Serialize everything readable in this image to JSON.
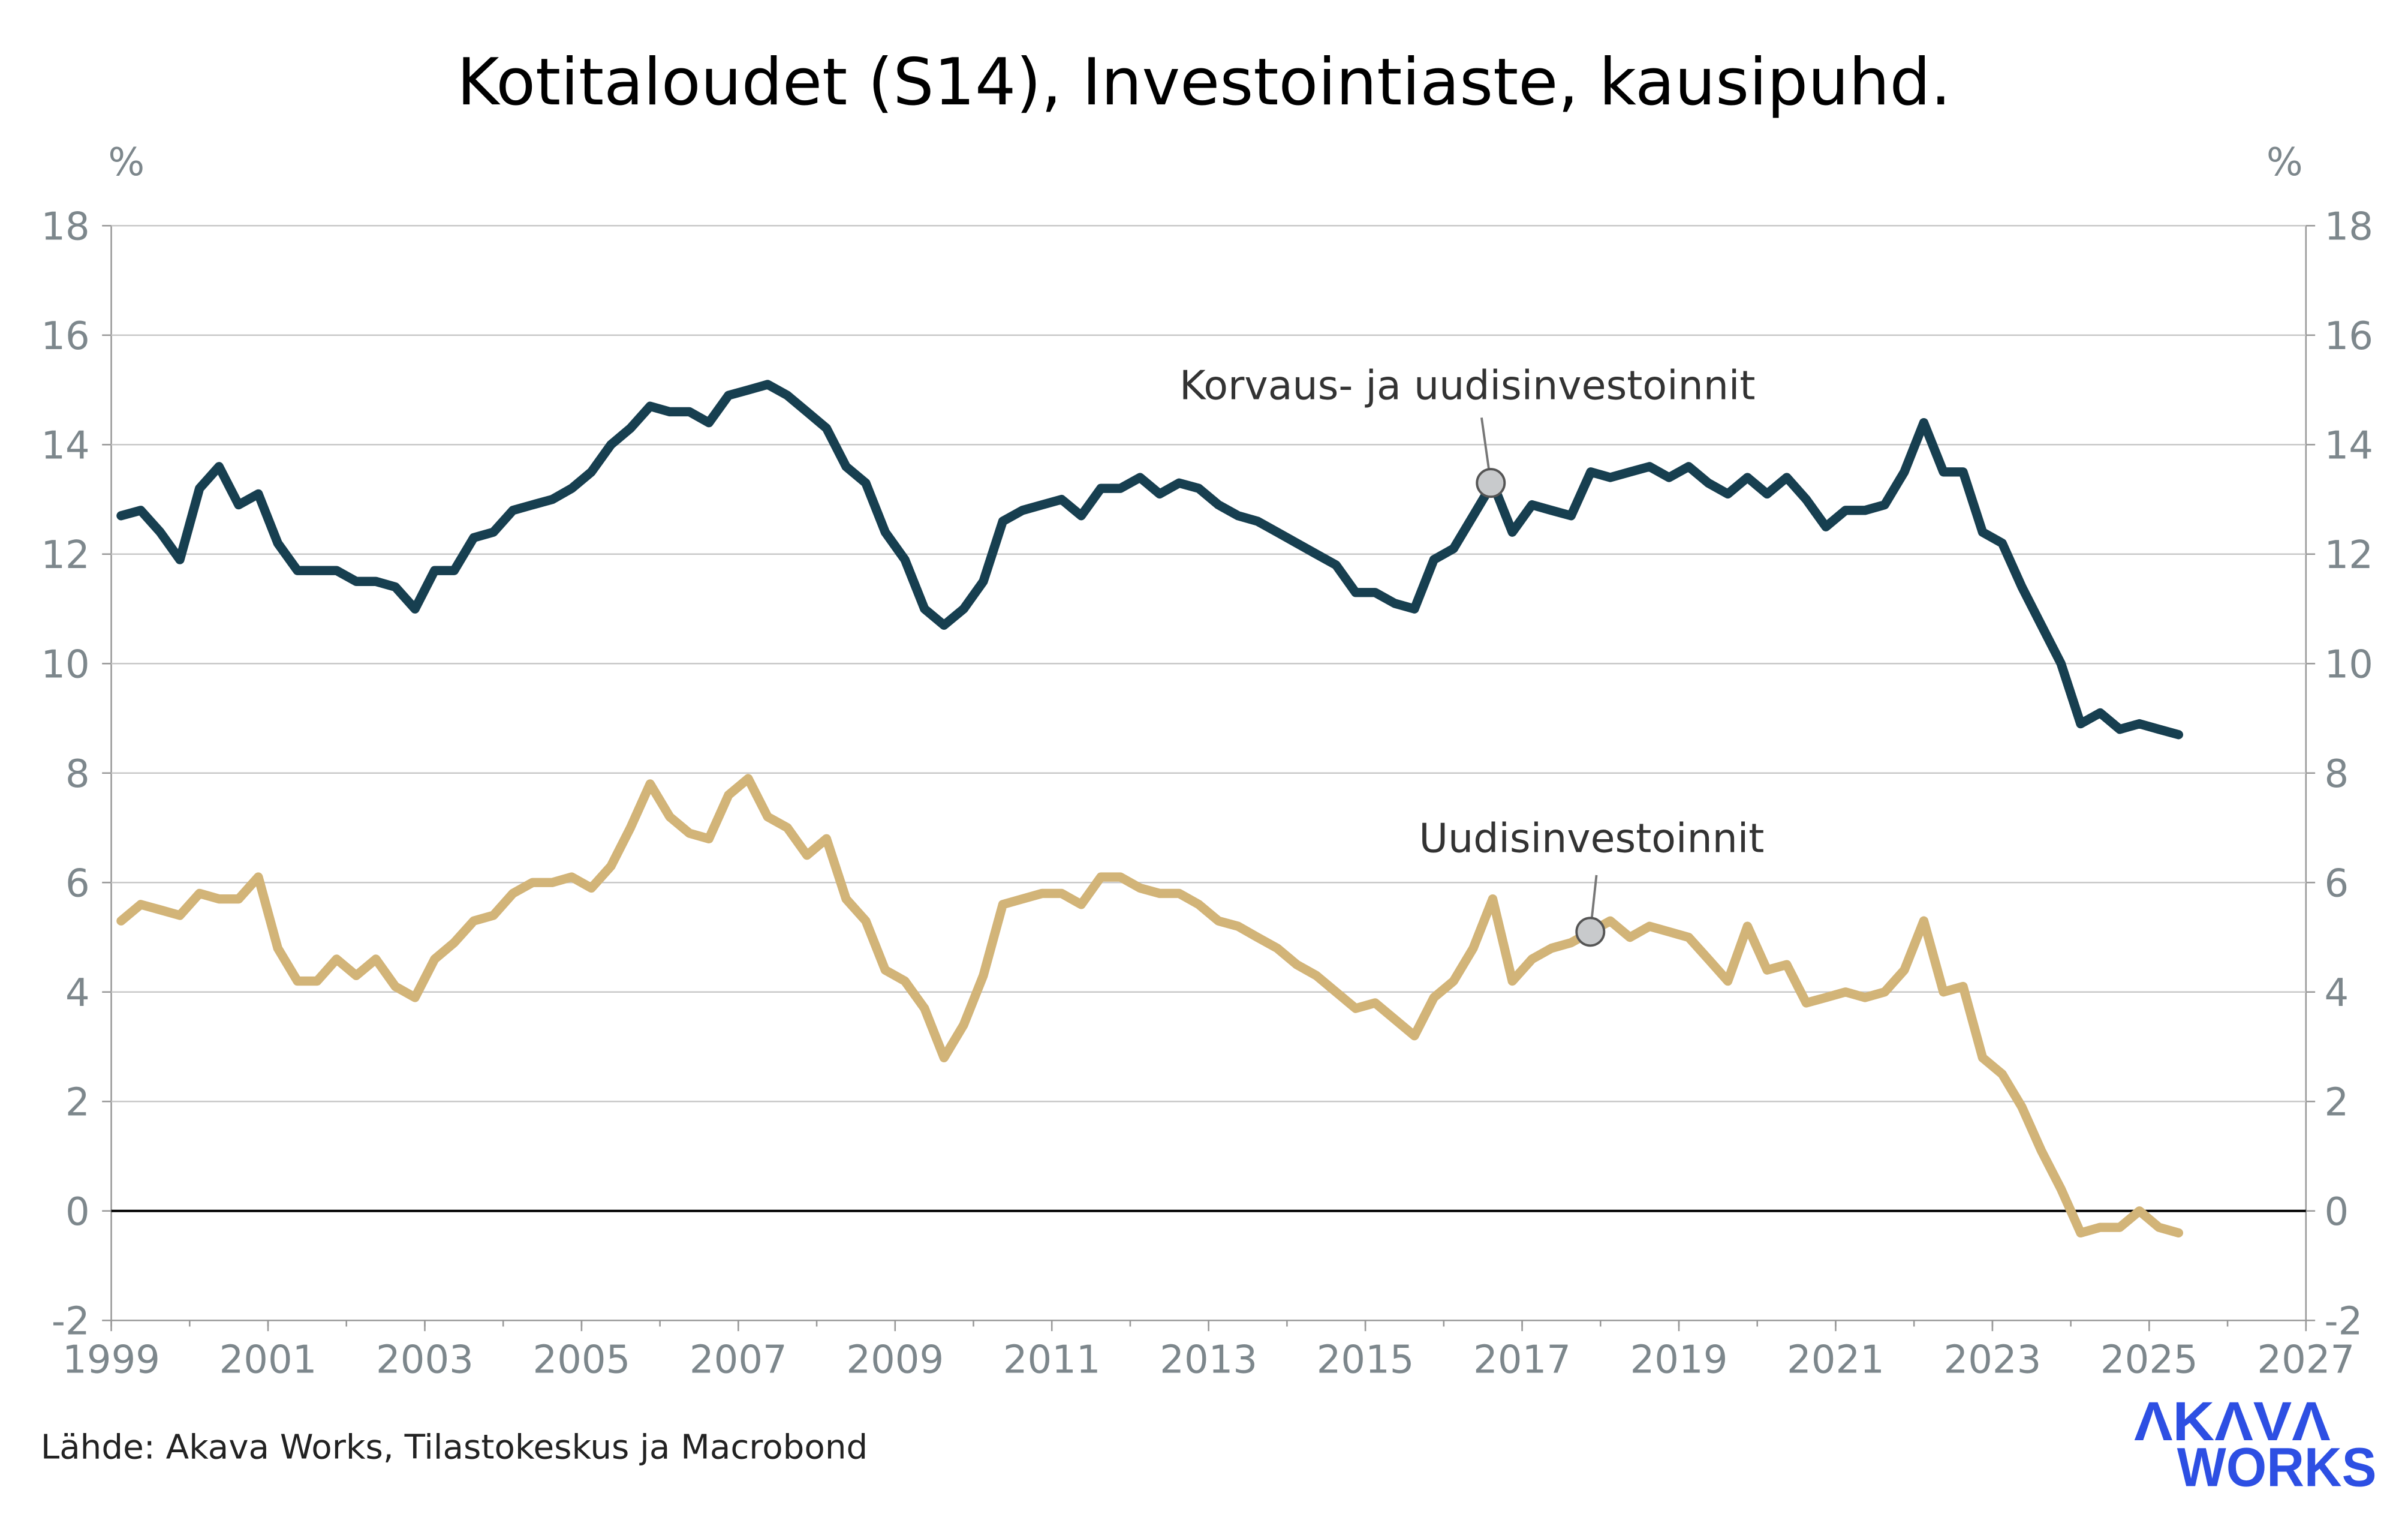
{
  "chart_data": {
    "type": "line",
    "title": "Kotitaloudet (S14), Investointiaste, kausipuhd.",
    "y_unit_left": "%",
    "y_unit_right": "%",
    "ylim": [
      -2,
      18
    ],
    "yticks": [
      -2,
      0,
      2,
      4,
      6,
      8,
      10,
      12,
      14,
      16,
      18
    ],
    "xlim": [
      1999,
      2027
    ],
    "xticks": [
      1999,
      2001,
      2003,
      2005,
      2007,
      2009,
      2011,
      2013,
      2015,
      2017,
      2019,
      2021,
      2023,
      2025,
      2027
    ],
    "grid": true,
    "frequency": "quarterly",
    "start_period": "1999Q1",
    "series": [
      {
        "name": "Korvaus- ja uudisinvestoinnit",
        "color": "#173f50",
        "annotation_point": [
          2016.6,
          13.3
        ],
        "values": [
          12.7,
          12.8,
          12.4,
          11.9,
          13.2,
          13.6,
          12.9,
          13.1,
          12.2,
          11.7,
          11.7,
          11.7,
          11.5,
          11.5,
          11.4,
          11.0,
          11.7,
          11.7,
          12.3,
          12.4,
          12.8,
          12.9,
          13.0,
          13.2,
          13.5,
          14.0,
          14.3,
          14.7,
          14.6,
          14.6,
          14.4,
          14.9,
          15.0,
          15.1,
          14.9,
          14.6,
          14.3,
          13.6,
          13.3,
          12.4,
          11.9,
          11.0,
          10.7,
          11.0,
          11.5,
          12.6,
          12.8,
          12.9,
          13.0,
          12.7,
          13.2,
          13.2,
          13.4,
          13.1,
          13.3,
          13.2,
          12.9,
          12.7,
          12.6,
          12.4,
          12.2,
          12.0,
          11.8,
          11.3,
          11.3,
          11.1,
          11.0,
          11.9,
          12.1,
          12.7,
          13.3,
          12.4,
          12.9,
          12.8,
          12.7,
          13.5,
          13.4,
          13.5,
          13.6,
          13.4,
          13.6,
          13.3,
          13.1,
          13.4,
          13.1,
          13.4,
          13.0,
          12.5,
          12.8,
          12.8,
          12.9,
          13.5,
          14.4,
          13.5,
          13.5,
          12.4,
          12.2,
          11.4,
          10.7,
          10.0,
          8.9,
          9.1,
          8.8,
          8.9,
          8.8,
          8.7
        ]
      },
      {
        "name": "Uudisinvestoinnit",
        "color": "#d2b478",
        "annotation_point": [
          2017.87,
          5.1
        ],
        "values": [
          5.3,
          5.6,
          5.5,
          5.4,
          5.8,
          5.7,
          5.7,
          6.1,
          4.8,
          4.2,
          4.2,
          4.6,
          4.3,
          4.6,
          4.1,
          3.9,
          4.6,
          4.9,
          5.3,
          5.4,
          5.8,
          6.0,
          6.0,
          6.1,
          5.9,
          6.3,
          7.0,
          7.8,
          7.2,
          6.9,
          6.8,
          7.6,
          7.9,
          7.2,
          7.0,
          6.5,
          6.8,
          5.7,
          5.3,
          4.4,
          4.2,
          3.7,
          2.8,
          3.4,
          4.3,
          5.6,
          5.7,
          5.8,
          5.8,
          5.6,
          6.1,
          6.1,
          5.9,
          5.8,
          5.8,
          5.6,
          5.3,
          5.2,
          5.0,
          4.8,
          4.5,
          4.3,
          4.0,
          3.7,
          3.8,
          3.5,
          3.2,
          3.9,
          4.2,
          4.8,
          5.7,
          4.2,
          4.6,
          4.8,
          4.9,
          5.1,
          5.3,
          5.0,
          5.2,
          5.1,
          5.0,
          4.6,
          4.2,
          5.2,
          4.4,
          4.5,
          3.8,
          3.9,
          4.0,
          3.9,
          4.0,
          4.4,
          5.3,
          4.0,
          4.1,
          2.8,
          2.5,
          1.9,
          1.1,
          0.4,
          -0.4,
          -0.3,
          -0.3,
          0.0,
          -0.3,
          -0.4
        ]
      }
    ],
    "source": "Lähde: Akava Works, Tilastokeskus ja Macrobond"
  },
  "logo": {
    "line1": "ΛKΛVΛ",
    "line2": "WORKS",
    "color": "#2d4fe3"
  }
}
